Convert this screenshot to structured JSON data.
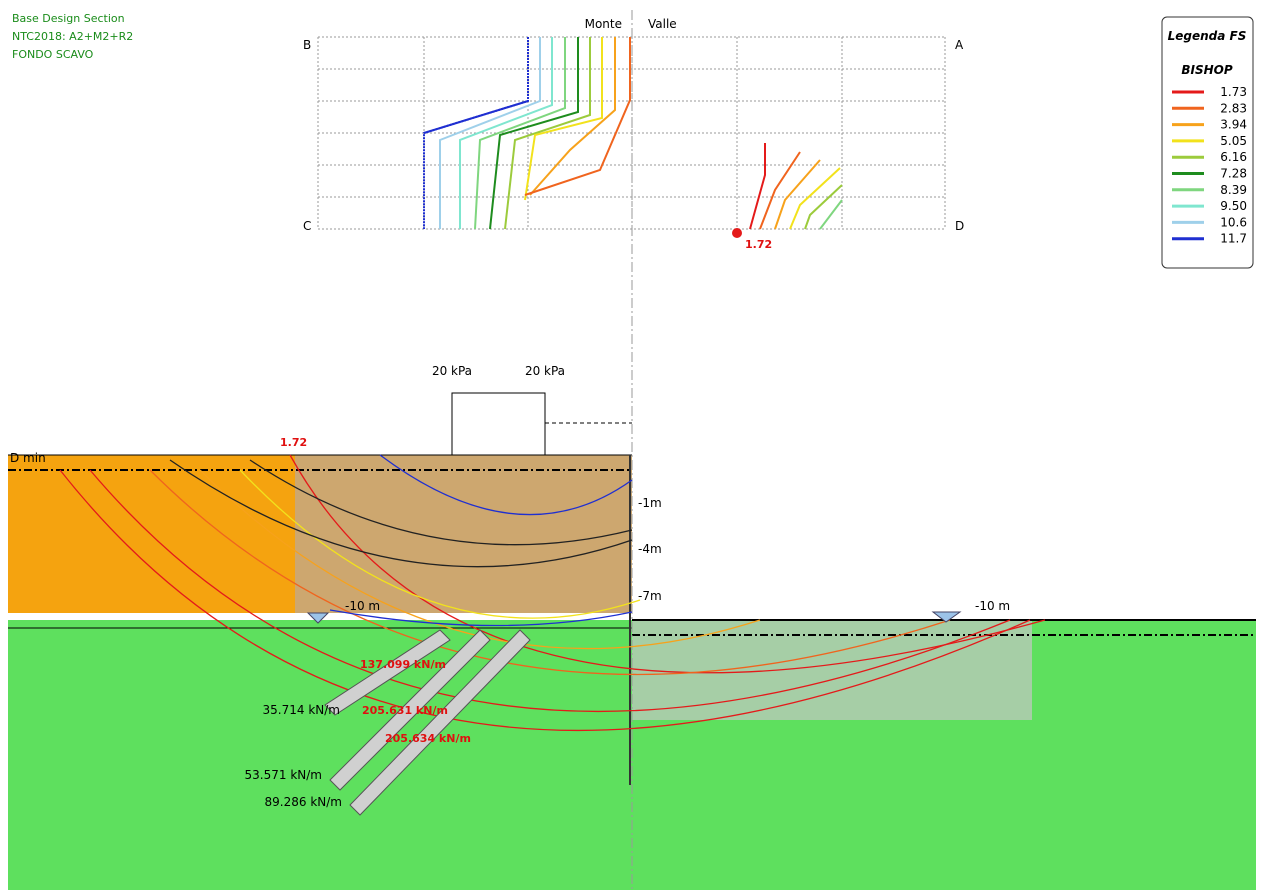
{
  "header": {
    "lines": [
      "Base Design Section",
      "NTC2018: A2+M2+R2",
      "FONDO SCAVO"
    ]
  },
  "contour_map": {
    "left_side": "Monte",
    "right_side": "Valle",
    "corners": {
      "top_left": "B",
      "top_right": "A",
      "bottom_left": "C",
      "bottom_right": "D"
    },
    "min_label": "1.72"
  },
  "legend": {
    "title": "Legenda FS",
    "method": "BISHOP",
    "entries": [
      {
        "label": "1.73",
        "color": "#e41a1a"
      },
      {
        "label": "2.83",
        "color": "#f0641e"
      },
      {
        "label": "3.94",
        "color": "#f7a21b"
      },
      {
        "label": "5.05",
        "color": "#f2e21c"
      },
      {
        "label": "6.16",
        "color": "#9ccb3c"
      },
      {
        "label": "7.28",
        "color": "#1e8c1e"
      },
      {
        "label": "8.39",
        "color": "#7fd67f"
      },
      {
        "label": "9.50",
        "color": "#7fe6cf"
      },
      {
        "label": "10.6",
        "color": "#9fd0ea"
      },
      {
        "label": "11.7",
        "color": "#1f2fd1"
      }
    ]
  },
  "section": {
    "surcharges": [
      "20 kPa",
      "20 kPa"
    ],
    "min_fs_label": "1.72",
    "d_min": "D min",
    "depth_labels": [
      "-1m",
      "-4m",
      "-7m"
    ],
    "water_left": "-10 m",
    "water_right": "-10 m",
    "anchor_forces": [
      "137.099 kN/m",
      "205.631 kN/m",
      "205.634 kN/m"
    ],
    "anchor_loads": [
      "35.714 kN/m",
      "53.571 kN/m",
      "89.286 kN/m"
    ]
  }
}
